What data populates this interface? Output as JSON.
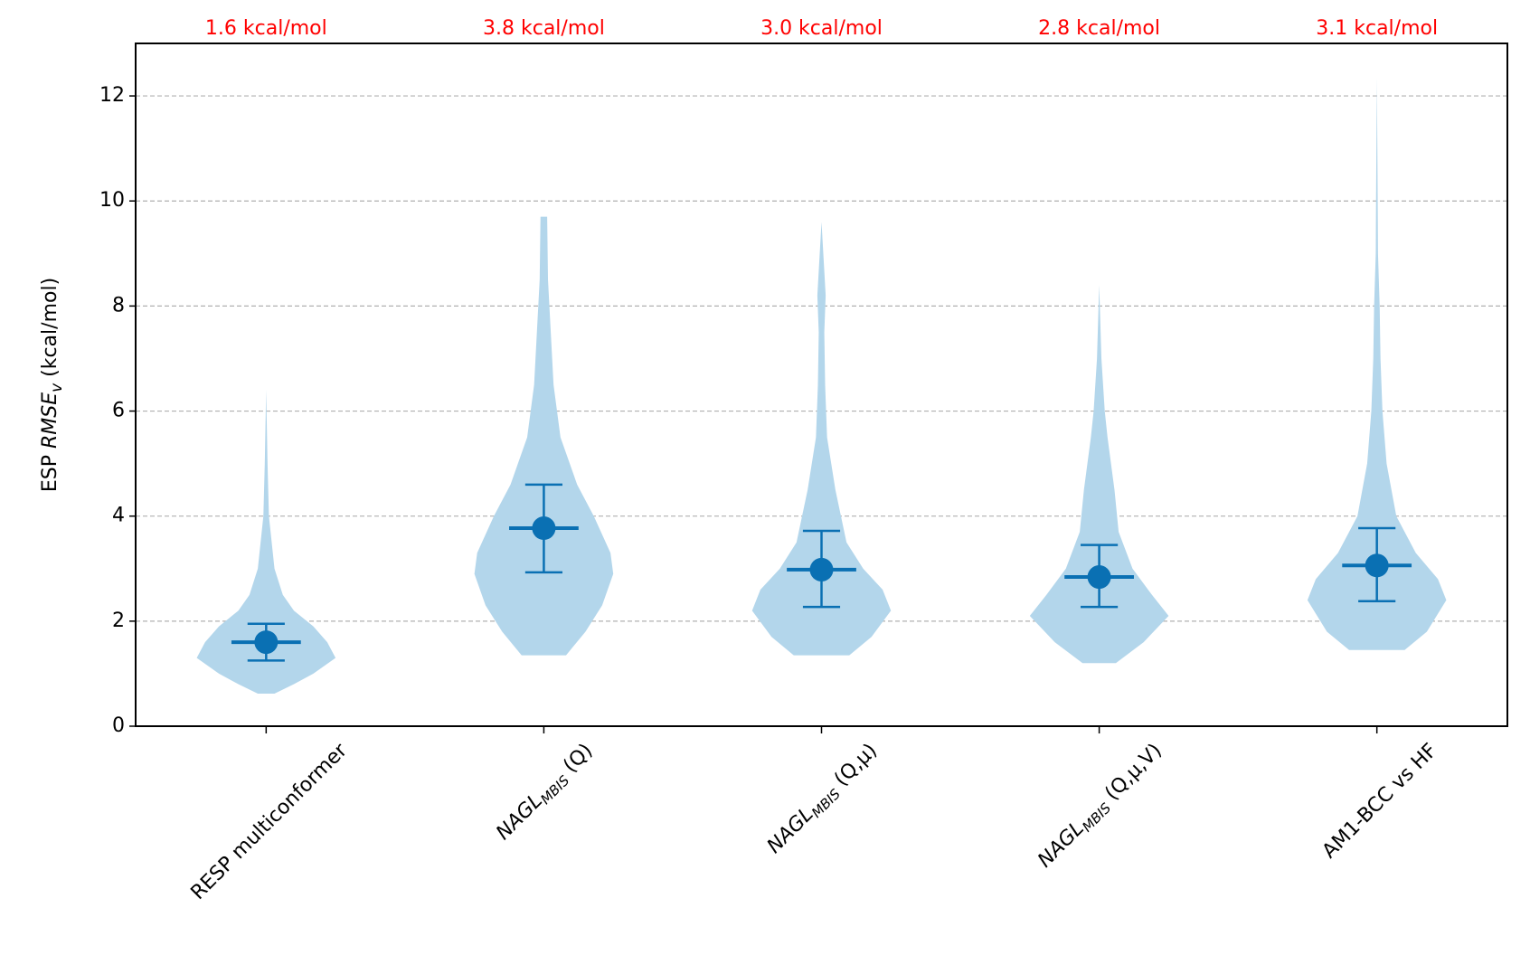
{
  "chart_data": {
    "type": "violin",
    "ylabel": {
      "pre": "ESP",
      "main": "RMSE",
      "sub": "v",
      "post": "(kcal/mol)"
    },
    "categories": [
      {
        "main": "RESP multiconformer"
      },
      {
        "main": "NAGL",
        "sub": "MBIS",
        "rest": "(Q)"
      },
      {
        "main": "NAGL",
        "sub": "MBIS",
        "rest": "(Q,μ)"
      },
      {
        "main": "NAGL",
        "sub": "MBIS",
        "rest": "(Q,μ,V)"
      },
      {
        "main": "AM1-BCC vs HF"
      }
    ],
    "xlim": [
      -0.47,
      4.47
    ],
    "ylim": [
      0,
      13
    ],
    "yticks": [
      0,
      2,
      4,
      6,
      8,
      10,
      12
    ],
    "grid": true,
    "color": "#0a70b3",
    "violin_color": "#b3d6eb",
    "label_color": "#ff0000",
    "values": [
      1.6,
      3.77,
      2.98,
      2.84,
      3.06
    ],
    "value_labels": [
      "1.6 kcal/mol",
      "3.8 kcal/mol",
      "3.0 kcal/mol",
      "2.8 kcal/mol",
      "3.1 kcal/mol"
    ],
    "err_low": [
      1.25,
      2.93,
      2.27,
      2.27,
      2.38
    ],
    "err_high": [
      1.95,
      4.6,
      3.72,
      3.45,
      3.77
    ],
    "violins": [
      {
        "y": [
          0.62,
          0.8,
          1.0,
          1.3,
          1.6,
          1.9,
          2.2,
          2.5,
          3.0,
          4.0,
          5.0,
          6.4
        ],
        "width": [
          0.03,
          0.1,
          0.17,
          0.25,
          0.22,
          0.17,
          0.1,
          0.06,
          0.03,
          0.01,
          0.005,
          0
        ]
      },
      {
        "y": [
          1.35,
          1.8,
          2.3,
          2.9,
          3.3,
          4.0,
          4.6,
          5.5,
          6.5,
          7.5,
          8.5,
          9.7
        ],
        "width": [
          0.08,
          0.15,
          0.21,
          0.25,
          0.24,
          0.18,
          0.12,
          0.06,
          0.035,
          0.025,
          0.015,
          0.012
        ]
      },
      {
        "y": [
          1.35,
          1.7,
          2.2,
          2.6,
          3.0,
          3.5,
          4.5,
          5.5,
          6.5,
          7.5,
          8.2,
          9.6
        ],
        "width": [
          0.1,
          0.18,
          0.25,
          0.22,
          0.15,
          0.09,
          0.05,
          0.02,
          0.013,
          0.01,
          0.015,
          0
        ]
      },
      {
        "y": [
          1.2,
          1.6,
          2.1,
          2.5,
          3.0,
          3.7,
          4.5,
          5.5,
          6.0,
          7.0,
          8.4
        ],
        "width": [
          0.06,
          0.16,
          0.25,
          0.19,
          0.12,
          0.07,
          0.055,
          0.03,
          0.02,
          0.008,
          0
        ]
      },
      {
        "y": [
          1.45,
          1.8,
          2.4,
          2.8,
          3.3,
          4.0,
          5.0,
          6.0,
          7.0,
          8.0,
          9.0,
          10.0,
          12.35
        ],
        "width": [
          0.1,
          0.18,
          0.25,
          0.22,
          0.14,
          0.07,
          0.035,
          0.02,
          0.013,
          0.01,
          0.004,
          0.003,
          0
        ]
      }
    ]
  }
}
